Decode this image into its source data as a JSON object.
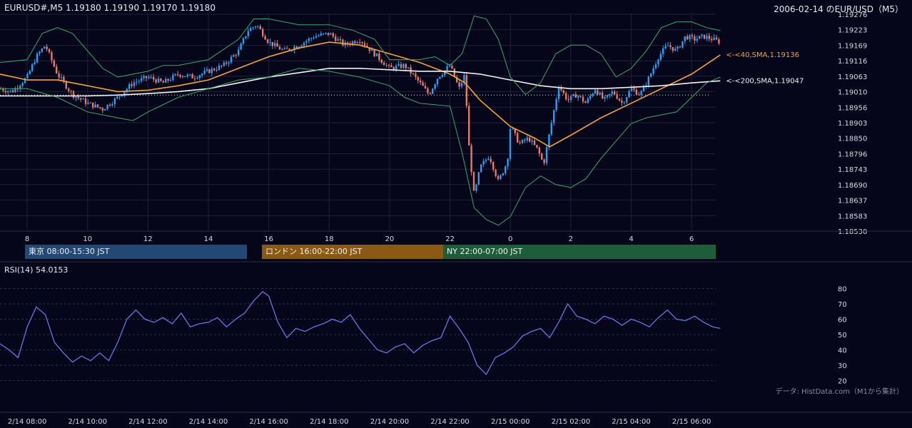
{
  "header": {
    "left": "EURUSD#,M5 1.19180 1.19190 1.19170 1.19180",
    "right": "2006-02-14 のEUR/USD（M5）"
  },
  "sessions": {
    "tokyo": "東京 08:00-15:30 JST",
    "london": "ロンドン 16:00-22:00 JST",
    "ny": "NY 22:00-07:00 JST"
  },
  "rsi_title": "RSI(14) 54.0153",
  "source_note": "データ: HistData.com（M1から集計）",
  "colors": {
    "bg": "#06061a",
    "grid": "#1e2235",
    "up": "#2a9df4",
    "down": "#e8786a",
    "sma40": "#f2a23a",
    "sma200": "#f2f2f2",
    "bollinger": "#3aa86a",
    "rsi": "#6b74e8",
    "tokyo": "#234873",
    "london": "#8a5a14",
    "ny": "#1d5e3a"
  },
  "chart_data": [
    {
      "type": "candlestick",
      "title": "EURUSD#,M5 1.19180 1.19190 1.19170 1.19180",
      "x_ticks": [
        "8",
        "10",
        "12",
        "14",
        "16",
        "18",
        "20",
        "22",
        "0",
        "2",
        "4",
        "6"
      ],
      "x_range_hours": [
        7.1,
        30.8
      ],
      "y_ticks": [
        "1.19276",
        "1.19223",
        "1.19169",
        "1.19116",
        "1.19063",
        "1.19010",
        "1.18956",
        "1.18903",
        "1.18850",
        "1.18796",
        "1.18743",
        "1.18690",
        "1.18637",
        "1.18583",
        "1.18530"
      ],
      "ylim": [
        1.1853,
        1.19276
      ],
      "series": [
        {
          "name": "<-<40,SMA,1.19136",
          "type": "line",
          "last": 1.19136,
          "hours": [
            7.1,
            8,
            9,
            10,
            11,
            12,
            13,
            14,
            15,
            16,
            17,
            18,
            19,
            20,
            21,
            22,
            22.5,
            23,
            0,
            0.8,
            1.3,
            2,
            3,
            4,
            5,
            6,
            6.95
          ],
          "values": [
            1.1907,
            1.1905,
            1.1905,
            1.1903,
            1.1901,
            1.19015,
            1.1903,
            1.1905,
            1.1909,
            1.1913,
            1.1916,
            1.1918,
            1.1917,
            1.1914,
            1.1911,
            1.1907,
            1.1904,
            1.1898,
            1.1889,
            1.1885,
            1.1882,
            1.1886,
            1.1892,
            1.1897,
            1.1902,
            1.1907,
            1.19136
          ]
        },
        {
          "name": "<-<200,SMA,1.19047",
          "type": "line",
          "last": 1.19047,
          "hours": [
            7.1,
            8,
            9,
            10,
            11,
            12,
            13,
            14,
            15,
            16,
            17,
            18,
            19,
            20,
            21,
            22,
            23,
            0,
            1,
            2,
            3,
            4,
            5,
            6,
            6.95
          ],
          "values": [
            1.18995,
            1.18995,
            1.18995,
            1.18995,
            1.18998,
            1.19003,
            1.1901,
            1.1902,
            1.1904,
            1.1906,
            1.19075,
            1.1909,
            1.1909,
            1.19085,
            1.1908,
            1.1908,
            1.1907,
            1.1905,
            1.1903,
            1.1902,
            1.1902,
            1.19025,
            1.1903,
            1.1904,
            1.19047
          ]
        },
        {
          "name": "Bollinger upper",
          "type": "line",
          "hours": [
            7.1,
            8,
            8.5,
            9,
            9.5,
            10,
            10.5,
            11,
            11.5,
            12,
            12.5,
            13,
            14,
            15,
            15.5,
            16,
            17,
            18,
            18.8,
            19.5,
            20,
            21,
            21.5,
            22,
            22.4,
            22.8,
            23.2,
            23.6,
            0,
            0.5,
            1,
            1.5,
            2,
            2.5,
            3,
            3.5,
            4,
            4.5,
            5,
            5.5,
            6,
            6.5,
            6.95
          ],
          "values": [
            1.1911,
            1.1912,
            1.1921,
            1.1923,
            1.1921,
            1.1915,
            1.1909,
            1.1906,
            1.1907,
            1.1908,
            1.191,
            1.191,
            1.1912,
            1.1919,
            1.1926,
            1.1926,
            1.1924,
            1.1924,
            1.1922,
            1.1919,
            1.1912,
            1.1912,
            1.1913,
            1.191,
            1.1914,
            1.1927,
            1.1926,
            1.1919,
            1.1906,
            1.19,
            1.1904,
            1.1914,
            1.1917,
            1.1917,
            1.1914,
            1.1906,
            1.1909,
            1.1915,
            1.1923,
            1.1925,
            1.1925,
            1.1923,
            1.1922
          ]
        },
        {
          "name": "Bollinger lower",
          "type": "line",
          "hours": [
            7.1,
            8,
            9,
            10,
            11,
            11.5,
            12,
            13,
            14,
            15,
            16,
            17,
            18,
            19,
            20,
            20.5,
            21,
            22,
            22.4,
            22.8,
            23.2,
            23.6,
            0,
            0.5,
            1,
            1.5,
            2,
            2.5,
            3,
            3.5,
            4,
            4.5,
            5,
            5.5,
            6,
            6.5,
            6.95
          ],
          "values": [
            1.1902,
            1.1902,
            1.1899,
            1.1894,
            1.1892,
            1.1891,
            1.1894,
            1.1899,
            1.1902,
            1.1905,
            1.1906,
            1.1909,
            1.1908,
            1.1906,
            1.1903,
            1.1899,
            1.1897,
            1.1896,
            1.188,
            1.1861,
            1.1857,
            1.1855,
            1.1858,
            1.1868,
            1.1872,
            1.1869,
            1.1868,
            1.1871,
            1.1878,
            1.1884,
            1.189,
            1.1892,
            1.1893,
            1.1894,
            1.1899,
            1.1904,
            1.1906
          ]
        },
        {
          "name": "Candles (close path)",
          "type": "candle",
          "hours": [
            7.1,
            7.5,
            8,
            8.3,
            8.6,
            9,
            9.5,
            10,
            10.5,
            11,
            11.5,
            12,
            12.5,
            13,
            13.5,
            14,
            14.5,
            15,
            15.3,
            15.6,
            16,
            16.5,
            17,
            17.5,
            18,
            18.5,
            19,
            19.5,
            20,
            20.5,
            21,
            21.3,
            21.6,
            22,
            22.3,
            22.5,
            22.6,
            22.8,
            23,
            23.3,
            23.6,
            23.9,
            0,
            0.3,
            0.6,
            0.9,
            1.1,
            1.3,
            1.6,
            1.9,
            2.2,
            2.5,
            2.8,
            3.1,
            3.4,
            3.7,
            4,
            4.3,
            4.6,
            4.9,
            5.2,
            5.5,
            5.8,
            6.1,
            6.4,
            6.7,
            6.95
          ],
          "values": [
            1.1902,
            1.1901,
            1.1906,
            1.1913,
            1.1917,
            1.1907,
            1.19,
            1.1897,
            1.1895,
            1.1899,
            1.1904,
            1.1906,
            1.1904,
            1.1907,
            1.1906,
            1.1908,
            1.191,
            1.1915,
            1.1922,
            1.1924,
            1.1918,
            1.1915,
            1.1917,
            1.192,
            1.1921,
            1.1917,
            1.1919,
            1.1914,
            1.1909,
            1.191,
            1.1904,
            1.19,
            1.1906,
            1.191,
            1.1902,
            1.1907,
            1.1885,
            1.1865,
            1.1875,
            1.1879,
            1.187,
            1.1877,
            1.1889,
            1.1883,
            1.1885,
            1.1881,
            1.1876,
            1.1887,
            1.1903,
            1.1898,
            1.19,
            1.1897,
            1.1902,
            1.1898,
            1.1901,
            1.1897,
            1.1902,
            1.19,
            1.1906,
            1.1913,
            1.1917,
            1.1915,
            1.192,
            1.1919,
            1.192,
            1.1919,
            1.1918
          ]
        }
      ]
    },
    {
      "type": "line",
      "title": "RSI(14) 54.0153",
      "y_ticks": [
        "80",
        "70",
        "60",
        "50",
        "40",
        "30",
        "20"
      ],
      "ylim": [
        17,
        83
      ],
      "x_ticks": [
        "2/14 08:00",
        "2/14 10:00",
        "2/14 12:00",
        "2/14 14:00",
        "2/14 16:00",
        "2/14 18:00",
        "2/14 20:00",
        "2/14 22:00",
        "2/15 00:00",
        "2/15 02:00",
        "2/15 04:00",
        "2/15 06:00"
      ],
      "series": [
        {
          "name": "RSI(14)",
          "last": 54.0153,
          "hours": [
            7.1,
            7.4,
            7.7,
            8.0,
            8.3,
            8.6,
            8.9,
            9.2,
            9.5,
            9.8,
            10.1,
            10.4,
            10.7,
            11.0,
            11.3,
            11.6,
            11.9,
            12.2,
            12.5,
            12.8,
            13.1,
            13.4,
            13.7,
            14.0,
            14.3,
            14.6,
            14.9,
            15.2,
            15.5,
            15.8,
            16.0,
            16.3,
            16.6,
            16.9,
            17.2,
            17.5,
            17.8,
            18.1,
            18.4,
            18.7,
            19.0,
            19.3,
            19.6,
            19.9,
            20.2,
            20.5,
            20.8,
            21.1,
            21.4,
            21.7,
            22.0,
            22.3,
            22.6,
            22.9,
            23.2,
            23.5,
            23.8,
            0.1,
            0.4,
            0.7,
            1.0,
            1.3,
            1.6,
            1.9,
            2.2,
            2.5,
            2.8,
            3.1,
            3.4,
            3.7,
            4.0,
            4.3,
            4.6,
            4.9,
            5.2,
            5.5,
            5.8,
            6.1,
            6.4,
            6.7,
            6.95
          ],
          "values": [
            44,
            40,
            35,
            55,
            68,
            63,
            45,
            38,
            32,
            36,
            33,
            38,
            33,
            45,
            60,
            66,
            60,
            58,
            61,
            57,
            64,
            55,
            57,
            58,
            61,
            55,
            60,
            64,
            72,
            78,
            75,
            58,
            48,
            54,
            52,
            55,
            57,
            60,
            58,
            63,
            54,
            47,
            40,
            38,
            42,
            44,
            38,
            43,
            46,
            48,
            62,
            54,
            45,
            30,
            24,
            35,
            38,
            42,
            49,
            52,
            54,
            48,
            58,
            70,
            62,
            60,
            57,
            62,
            60,
            56,
            60,
            58,
            55,
            61,
            66,
            60,
            59,
            62,
            58,
            55,
            54.0153
          ]
        }
      ]
    }
  ]
}
